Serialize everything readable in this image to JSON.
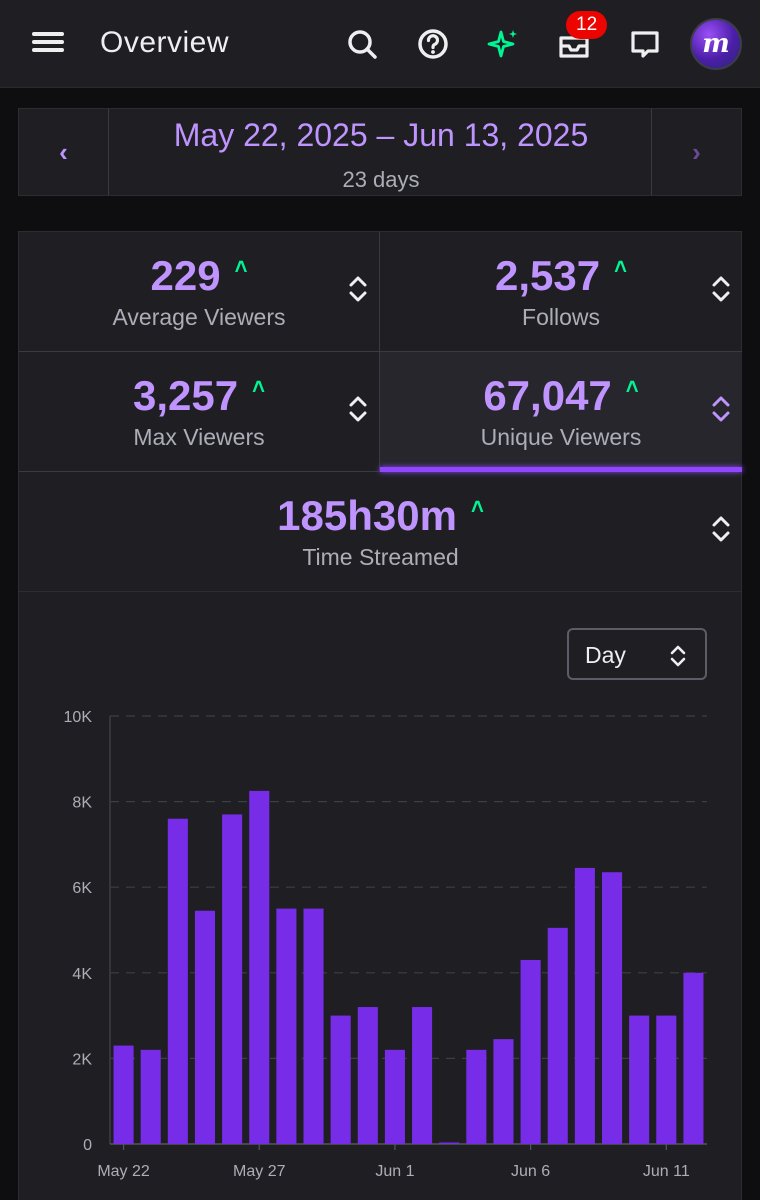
{
  "header": {
    "title": "Overview",
    "notification_count": "12",
    "avatar_letter": "m"
  },
  "date_range": {
    "label": "May 22, 2025 – Jun 13, 2025",
    "days": "23 days",
    "prev_icon": "‹",
    "next_icon": "›"
  },
  "stats": [
    {
      "value": "229",
      "label": "Average Viewers"
    },
    {
      "value": "2,537",
      "label": "Follows"
    },
    {
      "value": "3,257",
      "label": "Max Viewers"
    },
    {
      "value": "67,047",
      "label": "Unique Viewers",
      "active": true
    },
    {
      "value": "185h30m",
      "label": "Time Streamed"
    }
  ],
  "trend_arrow": "˄",
  "colors": {
    "accent": "#bf94ff",
    "bar": "#772ce8",
    "up": "#00f593",
    "badge": "#eb0400"
  },
  "period_select": {
    "value": "Day"
  },
  "chart_data": {
    "type": "bar",
    "categories": [
      "May 22",
      "May 23",
      "May 24",
      "May 25",
      "May 26",
      "May 27",
      "May 28",
      "May 29",
      "May 30",
      "May 31",
      "Jun 1",
      "Jun 2",
      "Jun 3",
      "Jun 4",
      "Jun 5",
      "Jun 6",
      "Jun 7",
      "Jun 8",
      "Jun 9",
      "Jun 10",
      "Jun 11",
      "Jun 12"
    ],
    "values": [
      2300,
      2200,
      7600,
      5450,
      7700,
      8250,
      5500,
      5500,
      3000,
      3200,
      2200,
      3200,
      0,
      2200,
      2450,
      4300,
      5050,
      6450,
      6350,
      3000,
      3000,
      4000
    ],
    "x_tick_labels": [
      "May 22",
      "May 27",
      "Jun 1",
      "Jun 6",
      "Jun 11"
    ],
    "x_tick_indices": [
      0,
      5,
      10,
      15,
      20
    ],
    "y_ticks": [
      0,
      2000,
      4000,
      6000,
      8000,
      10000
    ],
    "y_tick_labels": [
      "0",
      "2K",
      "4K",
      "6K",
      "8K",
      "10K"
    ],
    "ylim": [
      0,
      10000
    ],
    "grid": true,
    "title": "",
    "xlabel": "",
    "ylabel": ""
  }
}
